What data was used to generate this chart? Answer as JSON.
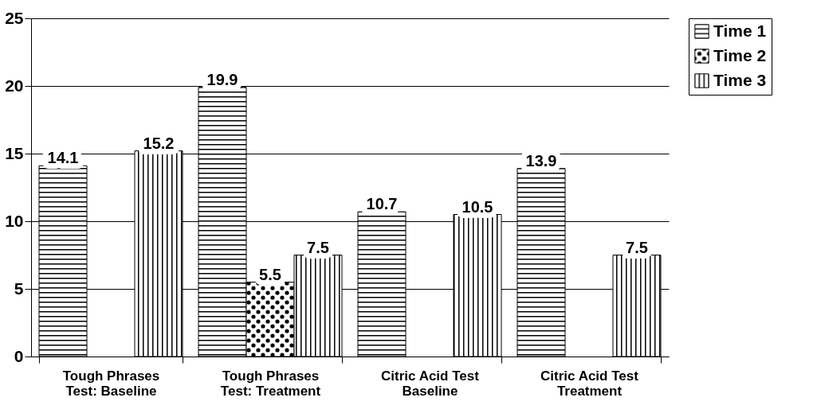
{
  "chart_data": {
    "type": "bar",
    "categories": [
      "Tough Phrases Test: Baseline",
      "Tough Phrases Test: Treatment",
      "Citric Acid Test Baseline",
      "Citric Acid Test Treatment"
    ],
    "series": [
      {
        "name": "Time 1",
        "color": "#000000",
        "values": [
          14.1,
          19.9,
          10.7,
          13.9
        ]
      },
      {
        "name": "Time 2",
        "color": "#000000",
        "values": [
          null,
          5.5,
          null,
          null
        ]
      },
      {
        "name": "Time 3",
        "color": "#000000",
        "values": [
          15.2,
          7.5,
          10.5,
          7.5
        ]
      }
    ],
    "ylim": [
      0,
      25
    ],
    "yticks": [
      0,
      5,
      10,
      15,
      20,
      25
    ],
    "grid": "y",
    "legend": "right",
    "data_labels": true
  }
}
